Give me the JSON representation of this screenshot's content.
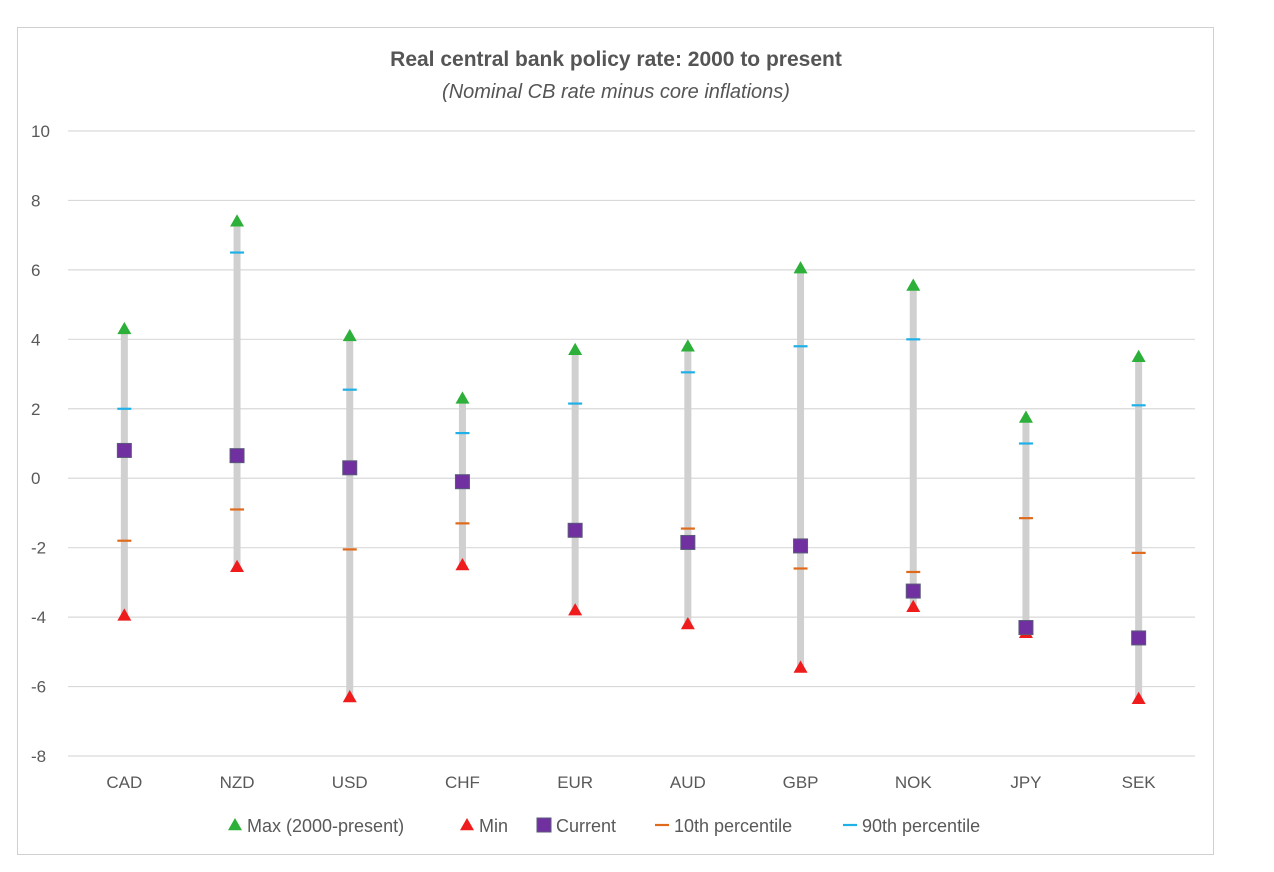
{
  "chart_data": {
    "type": "scatter",
    "title": "Real central bank policy rate: 2000 to present",
    "subtitle": "(Nominal CB rate minus core inflations)",
    "categories": [
      "CAD",
      "NZD",
      "USD",
      "CHF",
      "EUR",
      "AUD",
      "GBP",
      "NOK",
      "JPY",
      "SEK"
    ],
    "ylim": [
      -8,
      10
    ],
    "yticks": [
      10,
      8,
      6,
      4,
      2,
      0,
      -2,
      -4,
      -6,
      -8
    ],
    "grid": true,
    "legend_position": "bottom",
    "series": [
      {
        "name": "Max (2000-present)",
        "marker": "triangle",
        "color": "#2db03a",
        "values": [
          4.3,
          7.4,
          4.1,
          2.3,
          3.7,
          3.8,
          6.05,
          5.55,
          1.75,
          3.5
        ]
      },
      {
        "name": "Min",
        "marker": "triangle",
        "color": "#ee1c1c",
        "values": [
          -3.95,
          -2.55,
          -6.3,
          -2.5,
          -3.8,
          -4.2,
          -5.45,
          -3.7,
          -4.45,
          -6.35
        ]
      },
      {
        "name": "Current",
        "marker": "square",
        "color": "#7030a0",
        "values": [
          0.8,
          0.65,
          0.3,
          -0.1,
          -1.5,
          -1.85,
          -1.95,
          -3.25,
          -4.3,
          -4.6
        ]
      },
      {
        "name": "10th percentile",
        "marker": "dash",
        "color": "#e06a1b",
        "values": [
          -1.8,
          -0.9,
          -2.05,
          -1.3,
          -1.35,
          -1.45,
          -2.6,
          -2.7,
          -1.15,
          -2.15
        ]
      },
      {
        "name": "90th percentile",
        "marker": "dash",
        "color": "#1fb0e8",
        "values": [
          2.0,
          6.5,
          2.55,
          1.3,
          2.15,
          3.05,
          3.8,
          4.0,
          1.0,
          2.1
        ]
      }
    ],
    "range_bar_color": "#d0d0d0",
    "grid_color": "#d9d9d9"
  }
}
